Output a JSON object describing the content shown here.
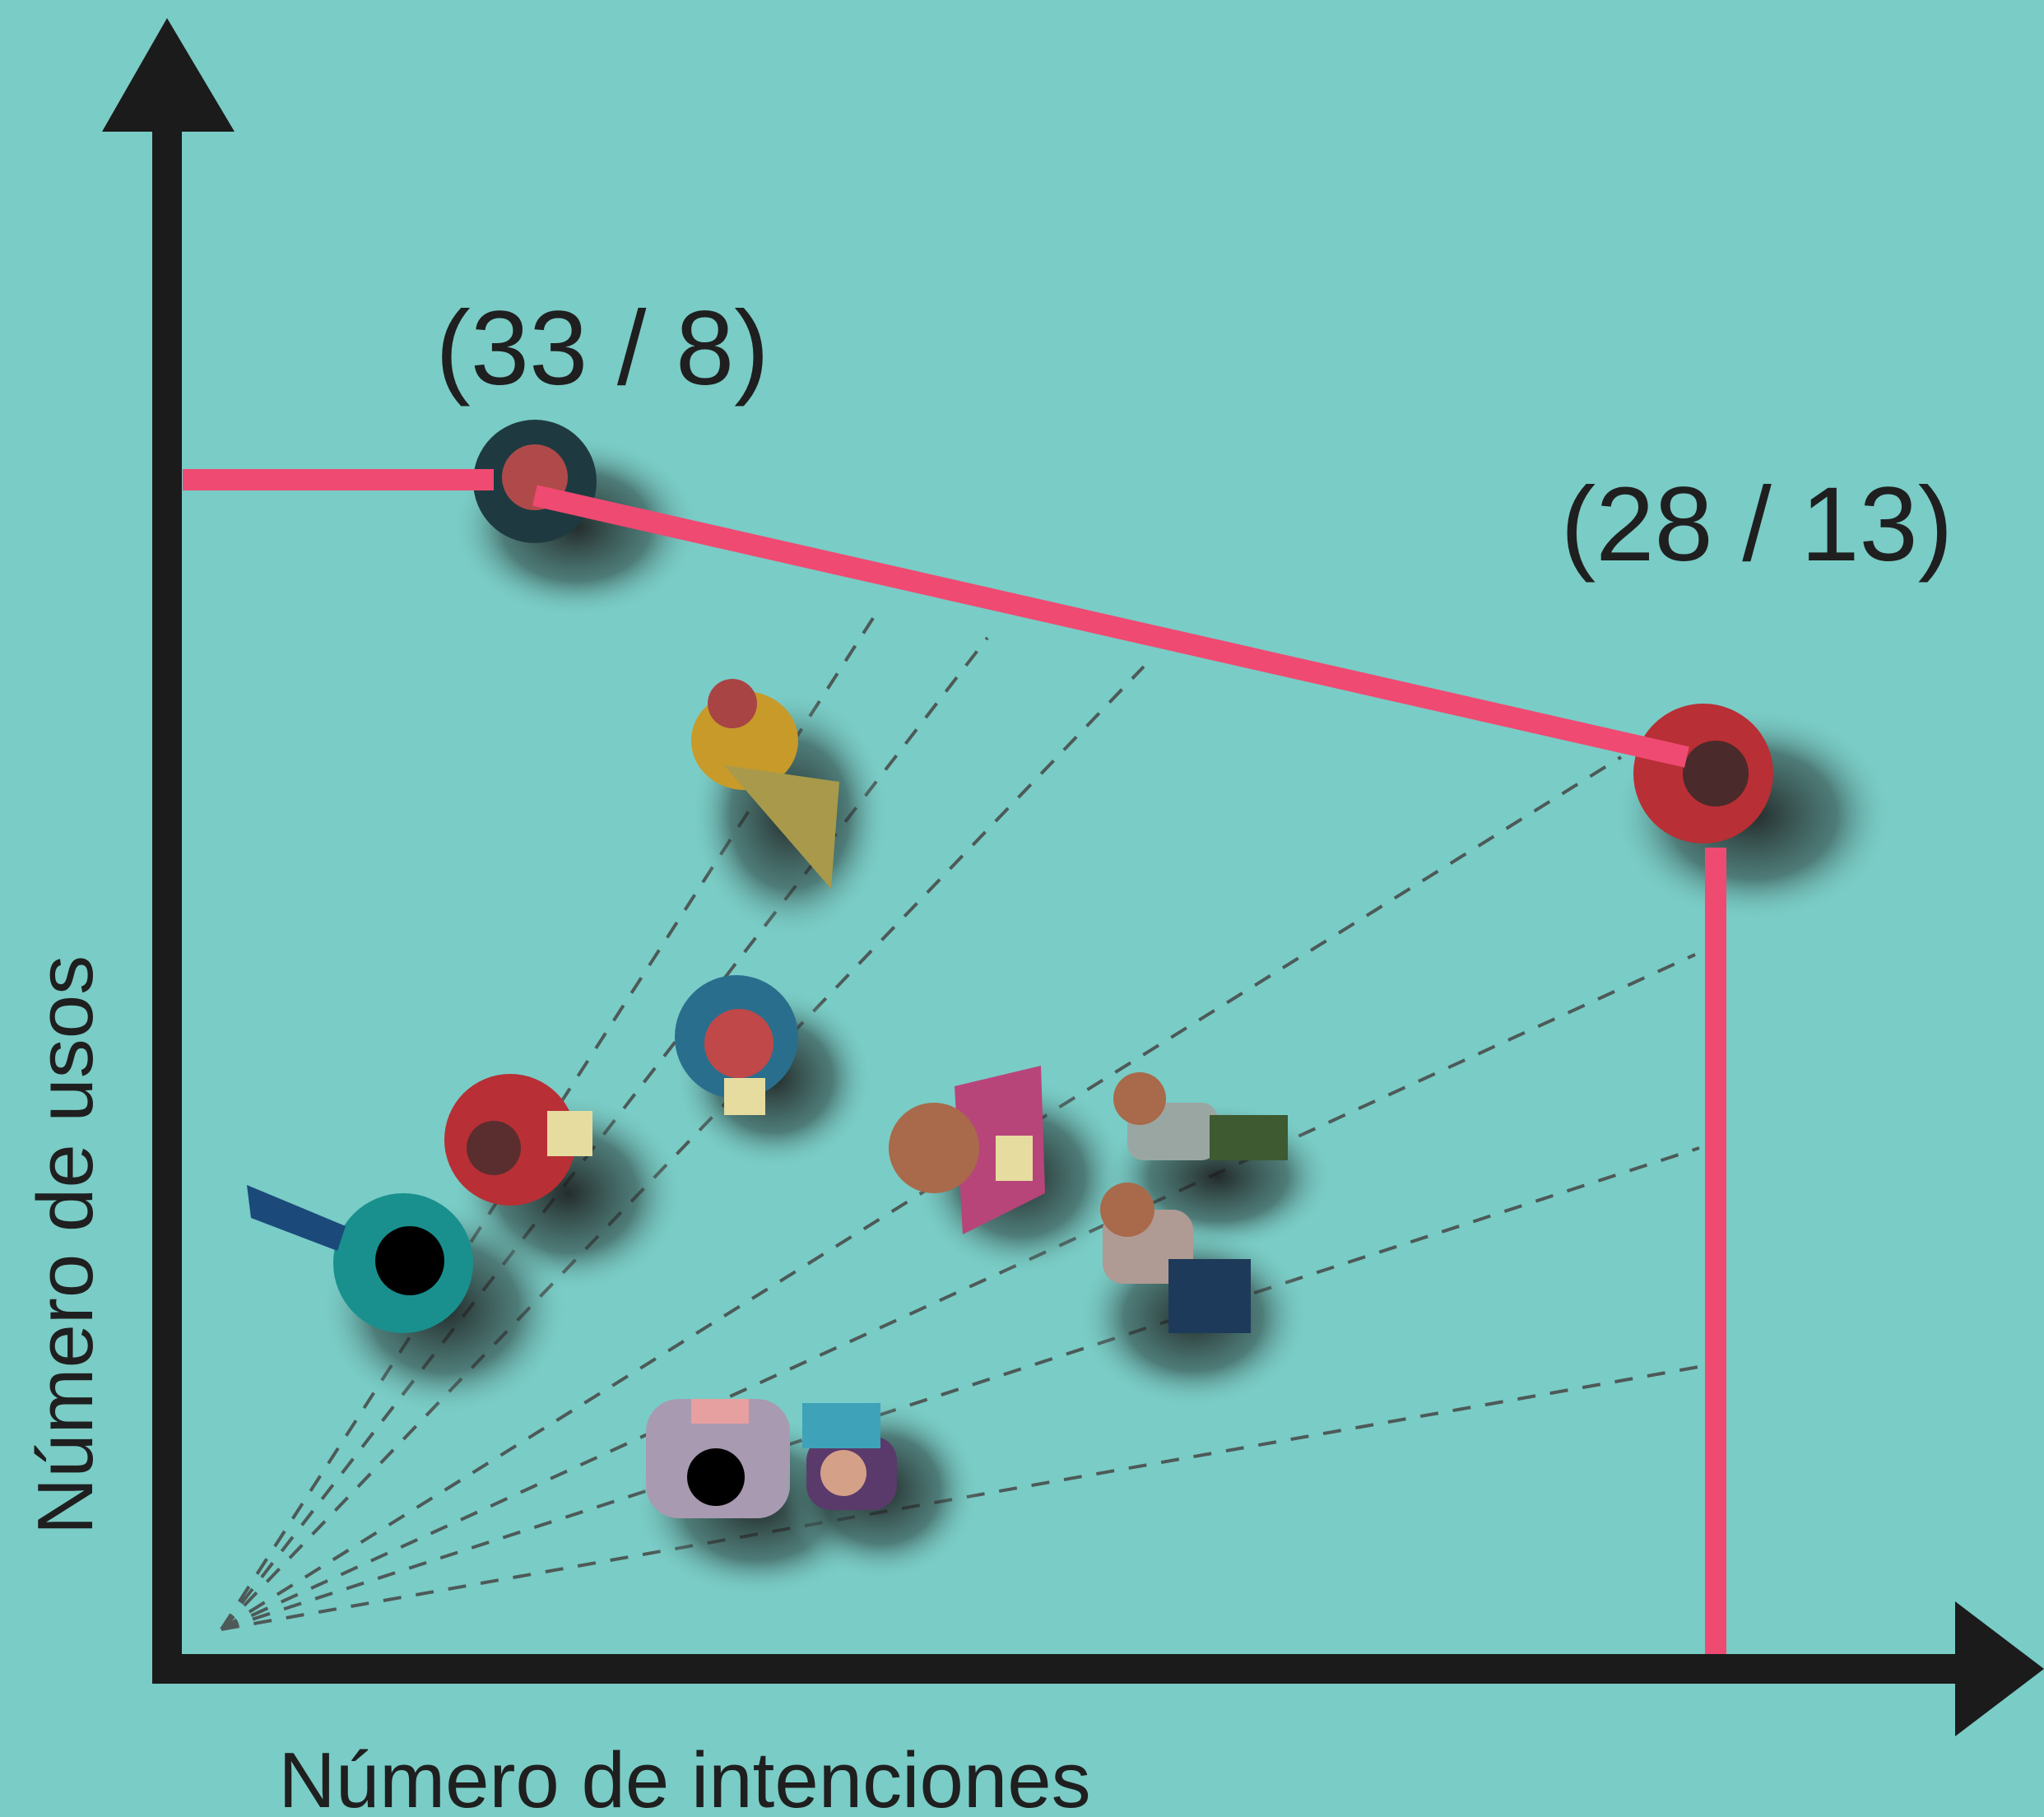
{
  "axes": {
    "x_label": "Número de intenciones",
    "y_label": "Número de usos"
  },
  "points": [
    {
      "label": "(33 / 8)"
    },
    {
      "label": "(28 / 13)"
    }
  ]
}
